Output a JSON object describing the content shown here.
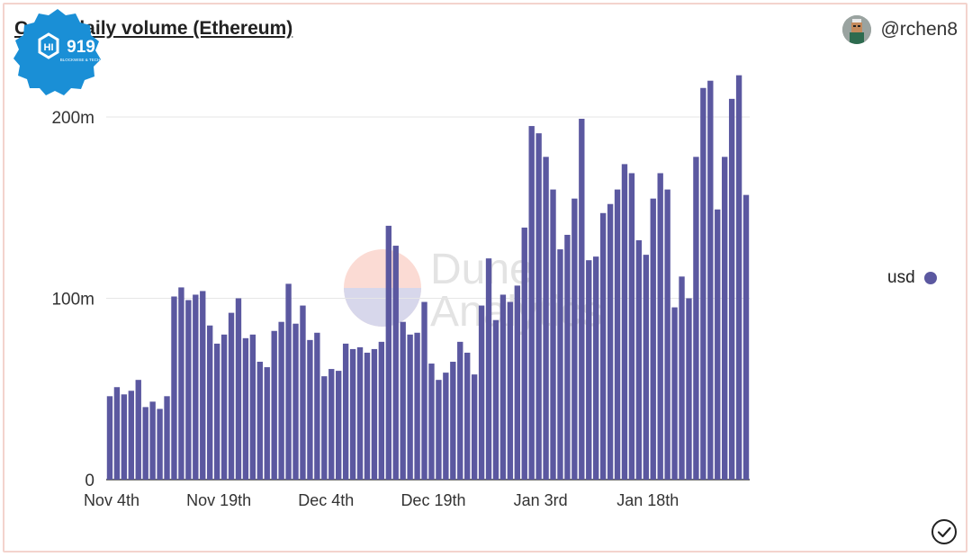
{
  "header": {
    "title": "Curve daily volume (Ethereum)",
    "author": "@rchen8"
  },
  "logo": {
    "number": "919",
    "tagline": "BLOCKWISE & TECH"
  },
  "watermark": {
    "line1": "Dune",
    "line2": "Analytics"
  },
  "legend": {
    "label": "usd"
  },
  "colors": {
    "bar": "#5b58a0",
    "accent_border": "#f3d3cd",
    "badge": "#1a8fd6"
  },
  "icons": [
    "avatar",
    "check-circle-icon"
  ],
  "chart_data": {
    "type": "bar",
    "title": "Curve daily volume (Ethereum)",
    "xlabel": "",
    "ylabel": "",
    "ylim": [
      0,
      200000000
    ],
    "y_ticks": [
      0,
      100000000,
      200000000
    ],
    "y_tick_labels": [
      "0",
      "100m",
      "200m"
    ],
    "x_tick_labels": [
      "Nov 4th",
      "Nov 19th",
      "Dec 4th",
      "Dec 19th",
      "Jan 3rd",
      "Jan 18th"
    ],
    "x_tick_indices": [
      0,
      15,
      30,
      45,
      60,
      75
    ],
    "grid": true,
    "legend_position": "right",
    "series": [
      {
        "name": "usd",
        "values": [
          46,
          51,
          47,
          49,
          55,
          40,
          43,
          39,
          46,
          101,
          106,
          99,
          102,
          104,
          85,
          75,
          80,
          92,
          100,
          78,
          80,
          65,
          62,
          82,
          87,
          108,
          86,
          96,
          77,
          81,
          57,
          61,
          60,
          75,
          72,
          73,
          70,
          72,
          76,
          140,
          129,
          87,
          80,
          81,
          98,
          64,
          55,
          59,
          65,
          76,
          70,
          58,
          96,
          122,
          88,
          102,
          98,
          107,
          139,
          195,
          191,
          178,
          160,
          127,
          135,
          155,
          199,
          121,
          123,
          147,
          152,
          160,
          174,
          169,
          132,
          124,
          155,
          169,
          160,
          95,
          112,
          100,
          178,
          216,
          220,
          149,
          178,
          210,
          223,
          157
        ]
      }
    ],
    "value_unit": "million USD"
  }
}
